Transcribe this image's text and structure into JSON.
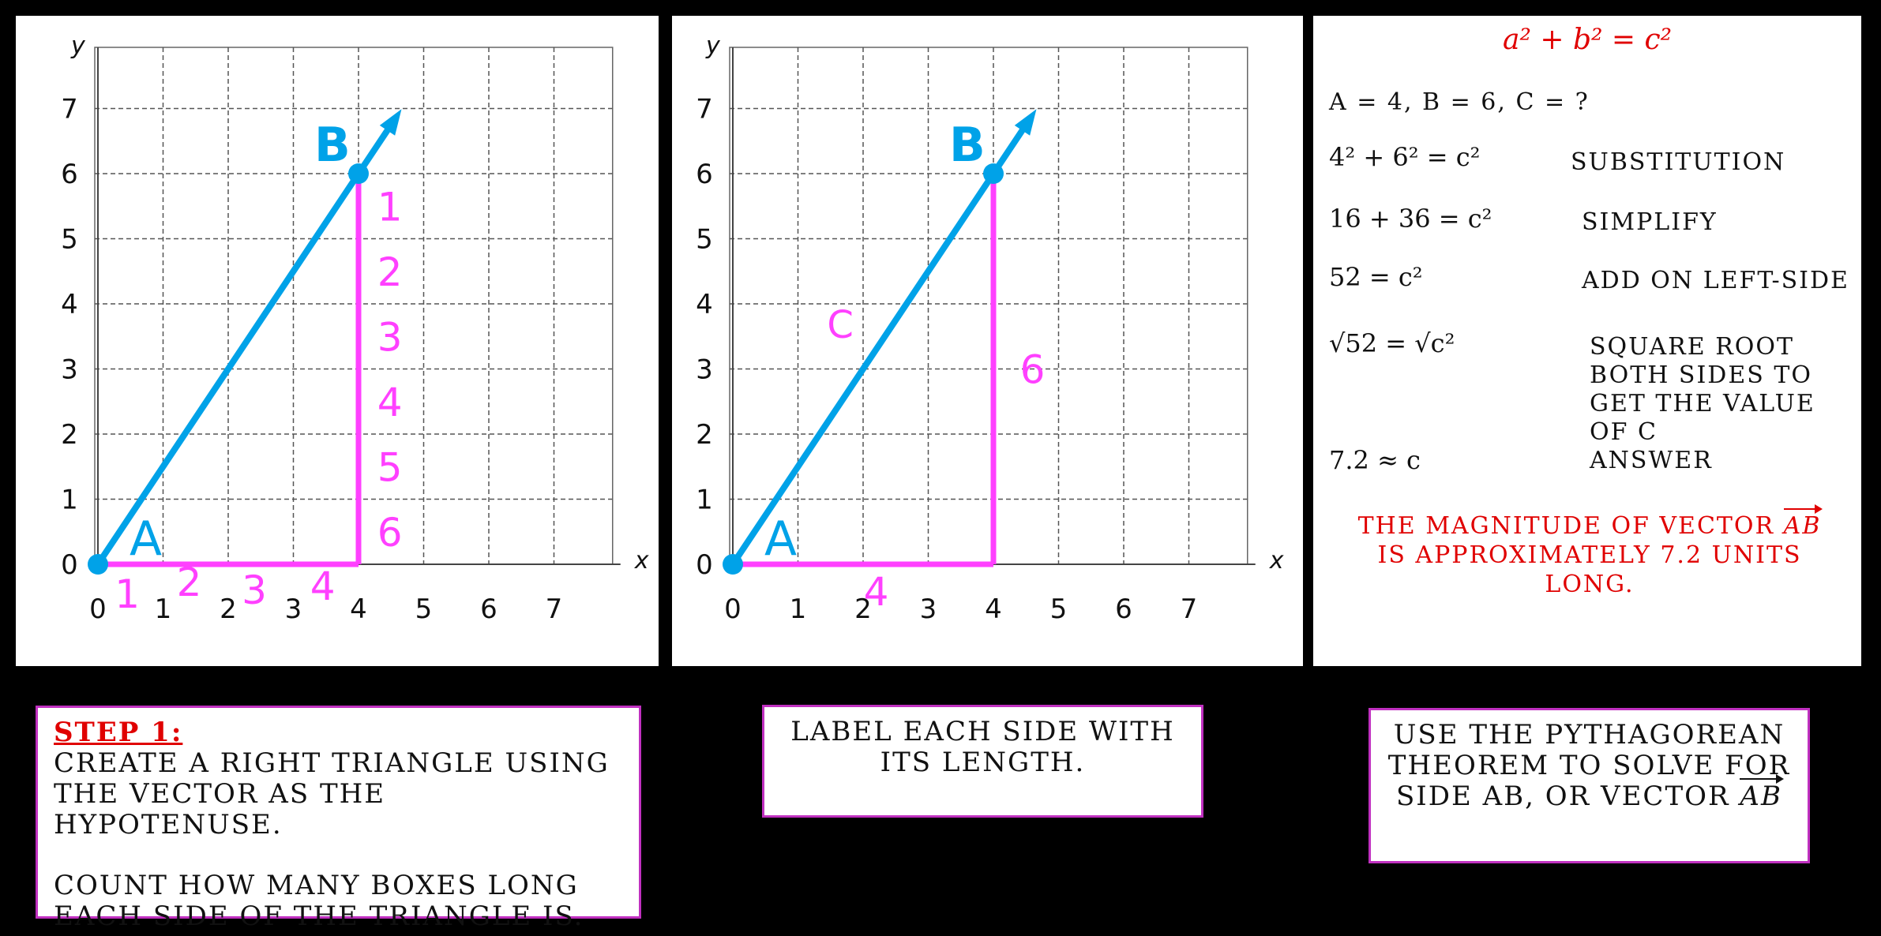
{
  "graphs": [
    {
      "id": "graph-1",
      "x_label": "x",
      "y_label": "y",
      "x_ticks": [
        "0",
        "1",
        "2",
        "3",
        "4",
        "5",
        "6",
        "7"
      ],
      "y_ticks": [
        "0",
        "1",
        "2",
        "3",
        "4",
        "5",
        "6",
        "7"
      ],
      "point_a": {
        "label": "A",
        "x": 0,
        "y": 0
      },
      "point_b": {
        "label": "B",
        "x": 4,
        "y": 6
      },
      "bottom_counts": [
        "1",
        "2",
        "3",
        "4"
      ],
      "right_counts": [
        "1",
        "2",
        "3",
        "4",
        "5",
        "6"
      ],
      "colors": {
        "vector": "#00a2e8",
        "triangle": "#ff40ff",
        "grid": "#555555"
      }
    },
    {
      "id": "graph-2",
      "x_label": "x",
      "y_label": "y",
      "x_ticks": [
        "0",
        "1",
        "2",
        "3",
        "4",
        "5",
        "6",
        "7"
      ],
      "y_ticks": [
        "0",
        "1",
        "2",
        "3",
        "4",
        "5",
        "6",
        "7"
      ],
      "point_a": {
        "label": "A",
        "x": 0,
        "y": 0
      },
      "point_b": {
        "label": "B",
        "x": 4,
        "y": 6
      },
      "side_labels": {
        "base": "4",
        "height": "6",
        "hypotenuse": "C"
      },
      "colors": {
        "vector": "#00a2e8",
        "triangle": "#ff40ff",
        "grid": "#555555"
      }
    }
  ],
  "work": {
    "formula": "a² + b² = c²",
    "given": "A = 4, B = 6, C = ?",
    "steps": [
      {
        "expr": "4² + 6² = c²",
        "note": "SUBSTITUTION"
      },
      {
        "expr": "16 + 36 = c²",
        "note": "SIMPLIFY"
      },
      {
        "expr": "52 = c²",
        "note": "ADD ON LEFT-SIDE"
      },
      {
        "expr": "√52 = √c²",
        "note": "SQUARE ROOT BOTH SIDES TO GET THE VALUE OF C"
      },
      {
        "expr": "7.2 ≈ c",
        "note": "ANSWER"
      }
    ],
    "conclusion_pre": "THE MAGNITUDE OF VECTOR",
    "conclusion_vec": "AB",
    "conclusion_post": "IS APPROXIMATELY 7.2 UNITS LONG."
  },
  "captions": {
    "step1_title": "STEP 1:",
    "step1_line1": "CREATE A RIGHT TRIANGLE USING THE VECTOR AS THE HYPOTENUSE.",
    "step1_line2": "COUNT HOW MANY BOXES LONG EACH SIDE OF THE TRIANGLE IS.",
    "step2": "LABEL EACH SIDE WITH ITS LENGTH.",
    "step3_text": "USE THE PYTHAGOREAN THEOREM TO SOLVE FOR SIDE AB, OR VECTOR",
    "step3_vec": "AB"
  }
}
